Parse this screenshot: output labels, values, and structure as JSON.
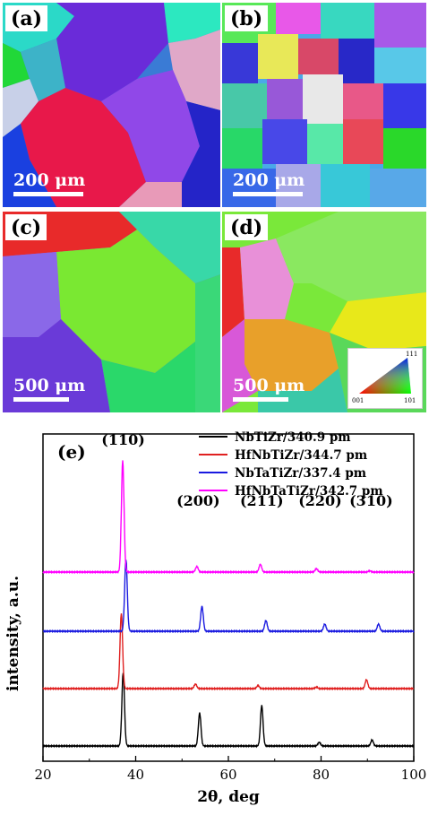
{
  "panels": [
    {
      "label": "(a)",
      "scale": "200 μm"
    },
    {
      "label": "(b)",
      "scale": "200 μm"
    },
    {
      "label": "(c)",
      "scale": "500 μm"
    },
    {
      "label": "(d)",
      "scale": "500 μm"
    }
  ],
  "ipf_key": {
    "top": "111",
    "left": "001",
    "right": "101"
  },
  "chart_data": {
    "type": "line",
    "panel_label": "(e)",
    "xlabel": "2θ, deg",
    "ylabel": "intensity, a.u.",
    "xlim": [
      20,
      100
    ],
    "xticks": [
      20,
      40,
      60,
      80,
      100
    ],
    "series": [
      {
        "name": "NbTiZr/340.9 pm",
        "color": "#000000",
        "offset": 0,
        "peaks": [
          [
            37.3,
            1.0
          ],
          [
            53.8,
            0.45
          ],
          [
            67.2,
            0.55
          ],
          [
            79.6,
            0.05
          ],
          [
            91.0,
            0.08
          ]
        ]
      },
      {
        "name": "HfNbTiZr/344.7 pm",
        "color": "#e02020",
        "offset": 1,
        "peaks": [
          [
            36.9,
            1.0
          ],
          [
            52.9,
            0.06
          ],
          [
            66.4,
            0.04
          ],
          [
            79.0,
            0.02
          ],
          [
            89.8,
            0.12
          ]
        ]
      },
      {
        "name": "NbTaTiZr/337.4 pm",
        "color": "#1a1ae0",
        "offset": 2,
        "peaks": [
          [
            37.9,
            1.0
          ],
          [
            54.3,
            0.35
          ],
          [
            68.1,
            0.15
          ],
          [
            80.8,
            0.1
          ],
          [
            92.4,
            0.1
          ]
        ]
      },
      {
        "name": "HfNbTaTiZr/342.7 pm",
        "color": "#ff00ff",
        "offset": 3,
        "peaks": [
          [
            37.2,
            1.0
          ],
          [
            53.2,
            0.05
          ],
          [
            66.9,
            0.07
          ],
          [
            79.0,
            0.03
          ],
          [
            90.5,
            0.01
          ]
        ]
      }
    ],
    "peak_labels": [
      {
        "text": "(110)",
        "x": 37.3
      },
      {
        "text": "(200)",
        "x": 53.5
      },
      {
        "text": "(211)",
        "x": 67.2
      },
      {
        "text": "(220)",
        "x": 79.8
      },
      {
        "text": "(310)",
        "x": 90.8
      }
    ]
  }
}
